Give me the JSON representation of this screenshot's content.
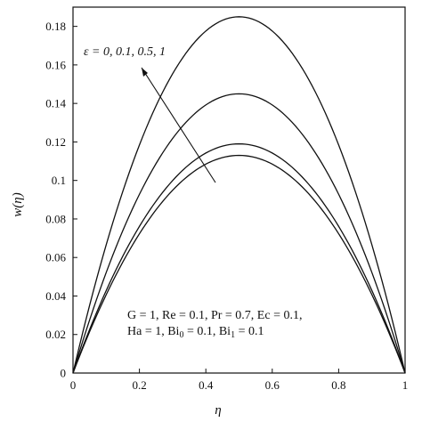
{
  "chart_data": {
    "type": "line",
    "xlabel": "η",
    "ylabel": "w(η)",
    "xlim": [
      0,
      1
    ],
    "ylim": [
      0,
      0.19
    ],
    "x_ticks": [
      "0",
      "0.2",
      "0.4",
      "0.6",
      "0.8",
      "1"
    ],
    "y_ticks": [
      "0",
      "0.02",
      "0.04",
      "0.06",
      "0.08",
      "0.1",
      "0.12",
      "0.14",
      "0.16",
      "0.18"
    ],
    "grid": false,
    "series": [
      {
        "peak": 0.113,
        "x": [
          0,
          0.1,
          0.2,
          0.3,
          0.4,
          0.5,
          0.6,
          0.7,
          0.8,
          0.9,
          1
        ],
        "values": [
          0,
          0.041,
          0.072,
          0.095,
          0.108,
          0.113,
          0.108,
          0.095,
          0.072,
          0.041,
          0
        ]
      },
      {
        "peak": 0.119,
        "x": [
          0,
          0.1,
          0.2,
          0.3,
          0.4,
          0.5,
          0.6,
          0.7,
          0.8,
          0.9,
          1
        ],
        "values": [
          0,
          0.043,
          0.076,
          0.1,
          0.114,
          0.119,
          0.114,
          0.1,
          0.076,
          0.043,
          0
        ]
      },
      {
        "peak": 0.145,
        "x": [
          0,
          0.1,
          0.2,
          0.3,
          0.4,
          0.5,
          0.6,
          0.7,
          0.8,
          0.9,
          1
        ],
        "values": [
          0,
          0.052,
          0.093,
          0.122,
          0.139,
          0.145,
          0.139,
          0.122,
          0.093,
          0.052,
          0
        ]
      },
      {
        "peak": 0.185,
        "x": [
          0,
          0.1,
          0.2,
          0.3,
          0.4,
          0.5,
          0.6,
          0.7,
          0.8,
          0.9,
          1
        ],
        "values": [
          0,
          0.067,
          0.118,
          0.155,
          0.178,
          0.185,
          0.178,
          0.155,
          0.118,
          0.067,
          0
        ]
      }
    ],
    "annotations": {
      "epsilon_label": "ε = 0, 0.1, 0.5, 1",
      "params_line1": "G = 1, Re = 0.1, Pr = 0.7, Ec = 0.1,",
      "params_line2_prefix": "Ha = 1, Bi",
      "params_line2_sub0": "0",
      "params_line2_mid": " = 0.1, Bi",
      "params_line2_sub1": "1",
      "params_line2_suffix": " = 0.1"
    }
  }
}
